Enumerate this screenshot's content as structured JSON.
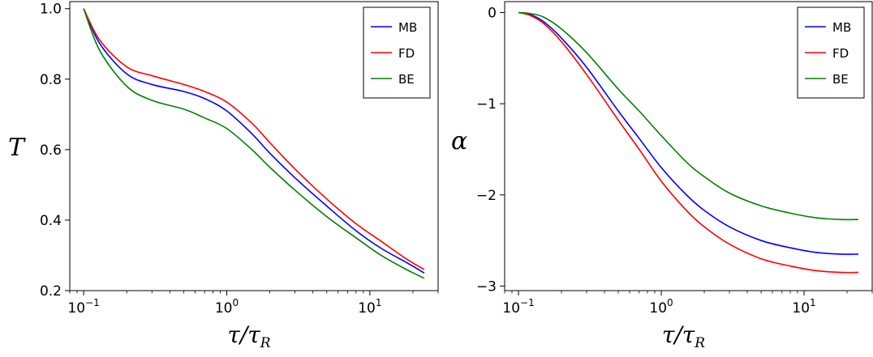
{
  "chart_data": [
    {
      "type": "line",
      "xscale": "log",
      "xlim": [
        0.08,
        30
      ],
      "ylim": [
        0.2,
        1.02
      ],
      "ylabel_main": "T",
      "xlabel_main": "τ/τ",
      "xlabel_sub": "R",
      "yticks": [
        {
          "value": 0.2,
          "label": "0.2"
        },
        {
          "value": 0.4,
          "label": "0.4"
        },
        {
          "value": 0.6,
          "label": "0.6"
        },
        {
          "value": 0.8,
          "label": "0.8"
        },
        {
          "value": 1.0,
          "label": "1.0"
        }
      ],
      "xticks": [
        {
          "value": 0.1,
          "base": "10",
          "exp": "−1"
        },
        {
          "value": 1,
          "base": "10",
          "exp": "0"
        },
        {
          "value": 10,
          "base": "10",
          "exp": "1"
        }
      ],
      "legend_position": "top-right",
      "x": [
        0.1,
        0.13,
        0.2,
        0.3,
        0.5,
        0.7,
        1,
        1.5,
        2,
        3,
        5,
        8,
        12,
        18,
        24
      ],
      "series": [
        {
          "name": "MB",
          "color": "#0000ff",
          "values": [
            1.0,
            0.9,
            0.815,
            0.785,
            0.765,
            0.745,
            0.71,
            0.645,
            0.59,
            0.52,
            0.44,
            0.37,
            0.32,
            0.28,
            0.25
          ]
        },
        {
          "name": "FD",
          "color": "#ff0000",
          "values": [
            1.0,
            0.91,
            0.835,
            0.81,
            0.785,
            0.765,
            0.735,
            0.675,
            0.62,
            0.545,
            0.46,
            0.39,
            0.34,
            0.29,
            0.26
          ]
        },
        {
          "name": "BE",
          "color": "#008000",
          "values": [
            1.0,
            0.88,
            0.78,
            0.74,
            0.715,
            0.69,
            0.66,
            0.6,
            0.55,
            0.485,
            0.41,
            0.35,
            0.3,
            0.26,
            0.235
          ]
        }
      ]
    },
    {
      "type": "line",
      "xscale": "log",
      "xlim": [
        0.08,
        30
      ],
      "ylim": [
        -3.05,
        0.12
      ],
      "ylabel_main": "α",
      "xlabel_main": "τ/τ",
      "xlabel_sub": "R",
      "yticks": [
        {
          "value": 0,
          "label": "0"
        },
        {
          "value": -1,
          "label": "−1"
        },
        {
          "value": -2,
          "label": "−2"
        },
        {
          "value": -3,
          "label": "−3"
        }
      ],
      "xticks": [
        {
          "value": 0.1,
          "base": "10",
          "exp": "−1"
        },
        {
          "value": 1,
          "base": "10",
          "exp": "0"
        },
        {
          "value": 10,
          "base": "10",
          "exp": "1"
        }
      ],
      "legend_position": "top-right",
      "x": [
        0.1,
        0.12,
        0.15,
        0.2,
        0.3,
        0.5,
        0.7,
        1,
        1.5,
        2,
        3,
        5,
        8,
        12,
        18,
        24
      ],
      "series": [
        {
          "name": "MB",
          "color": "#0000ff",
          "values": [
            0,
            -0.02,
            -0.1,
            -0.28,
            -0.6,
            -1.08,
            -1.38,
            -1.7,
            -2.0,
            -2.17,
            -2.35,
            -2.5,
            -2.58,
            -2.63,
            -2.65,
            -2.65
          ]
        },
        {
          "name": "FD",
          "color": "#ff0000",
          "values": [
            0,
            -0.03,
            -0.12,
            -0.32,
            -0.68,
            -1.18,
            -1.5,
            -1.85,
            -2.17,
            -2.35,
            -2.54,
            -2.7,
            -2.78,
            -2.83,
            -2.85,
            -2.85
          ]
        },
        {
          "name": "BE",
          "color": "#008000",
          "values": [
            0,
            -0.01,
            -0.05,
            -0.18,
            -0.44,
            -0.84,
            -1.08,
            -1.35,
            -1.64,
            -1.8,
            -1.98,
            -2.12,
            -2.2,
            -2.25,
            -2.27,
            -2.27
          ]
        }
      ]
    }
  ]
}
